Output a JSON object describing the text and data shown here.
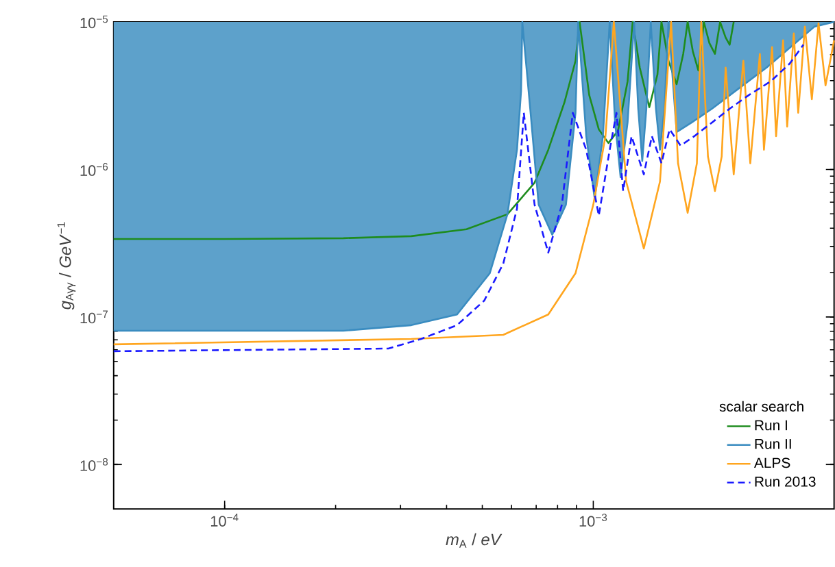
{
  "chart_data": {
    "type": "line",
    "xlabel": "*m*$_{A}$ / *eV*",
    "ylabel": "*g*$_{Aγγ}$ / *GeV*$^{−1}$",
    "legend_title": "scalar search",
    "log": "xy",
    "legend": "bottom right",
    "marker": "none",
    "grid": false,
    "xlim": [
      5e-05,
      0.0045
    ],
    "ylim": [
      5e-09,
      1e-05
    ],
    "xticks": [
      {
        "value": 0.0001,
        "label": "10$^{−4}$"
      },
      {
        "value": 0.001,
        "label": "10$^{−3}$"
      }
    ],
    "yticks": [
      {
        "value": 1e-08,
        "label": "10$^{−8}$"
      },
      {
        "value": 1e-07,
        "label": "10$^{−7}$"
      },
      {
        "value": 1e-06,
        "label": "10$^{−6}$"
      },
      {
        "value": 1e-05,
        "label": "10$^{−5}$"
      }
    ],
    "series": [
      {
        "name": "Run I",
        "color": "#1e8c1e",
        "line_style": "solid",
        "x": [
          5e-05,
          0.0001,
          0.00021,
          0.000321,
          0.000453,
          0.000585,
          0.000693,
          0.000755,
          0.000836,
          0.000895,
          0.000918,
          0.000975,
          0.001035,
          0.001099,
          0.001167,
          0.001239,
          0.001279,
          0.001337,
          0.001419,
          0.001493,
          0.001531,
          0.0016,
          0.001683,
          0.001754,
          0.001803,
          0.001862,
          0.001928,
          0.001995,
          0.002065,
          0.002138,
          0.002208,
          0.002286,
          0.002344,
          0.002404
        ],
        "values": [
          3.38e-07,
          3.38e-07,
          3.42e-07,
          3.53e-07,
          3.93e-07,
          4.97e-07,
          8.13e-07,
          1.36e-06,
          2.87e-06,
          5.45e-06,
          1e-05,
          3.19e-06,
          1.87e-06,
          1.51e-06,
          1.83e-06,
          3.95e-06,
          1e-05,
          4.9e-06,
          2.64e-06,
          4.4e-06,
          1e-05,
          5.45e-06,
          3.78e-06,
          6.07e-06,
          1e-05,
          6.33e-06,
          4.69e-06,
          1e-05,
          7.19e-06,
          6.07e-06,
          1e-05,
          7.83e-06,
          7e-06,
          1e-05
        ]
      },
      {
        "name": "Run II",
        "color": "#3a8cc0",
        "line_style": "solid",
        "x": [
          5e-05,
          0.00021,
          0.000321,
          0.000427,
          0.000524,
          0.000585,
          0.000621,
          0.000637,
          0.000642,
          0.000676,
          0.000711,
          0.000774,
          0.000843,
          0.000895,
          0.00091,
          0.000957,
          0.001009,
          0.001062,
          0.001108,
          0.001146,
          0.001186,
          0.001239,
          0.001291,
          0.001324,
          0.001358,
          0.001393,
          0.001432,
          0.001479,
          0.001517,
          0.00156,
          0.0016,
          0.001683,
          0.001849,
          0.002099,
          0.002489,
          0.002951,
          0.003499,
          0.003981,
          0.0045
        ],
        "values": [
          8.07e-08,
          8.07e-08,
          8.8e-08,
          1.04e-07,
          1.98e-07,
          4.97e-07,
          1.36e-06,
          3.4e-06,
          1e-05,
          2.42e-06,
          5.77e-07,
          3.61e-07,
          5.77e-07,
          2.42e-06,
          1e-05,
          1.68e-06,
          6.3e-07,
          1.68e-06,
          1e-05,
          2.08e-06,
          8.85e-07,
          2.08e-06,
          1e-05,
          2.58e-06,
          1.14e-06,
          2.58e-06,
          1e-05,
          2.58e-06,
          1.36e-06,
          2.58e-06,
          1e-05,
          1.79e-06,
          2.08e-06,
          2.58e-06,
          3.56e-06,
          4.9e-06,
          7.05e-06,
          9.29e-06,
          1e-05
        ],
        "lower": [
          8.07e-08,
          8.07e-08,
          8.8e-08,
          1.04e-07,
          1.98e-07,
          4.97e-07,
          1.36e-06,
          3.4e-06,
          1e-05,
          2.42e-06,
          5.77e-07,
          3.61e-07,
          5.77e-07,
          2.42e-06,
          1e-05,
          1.68e-06,
          6.3e-07,
          1.68e-06,
          1e-05,
          2.08e-06,
          8.85e-07,
          2.08e-06,
          1e-05,
          2.58e-06,
          1.14e-06,
          2.58e-06,
          1e-05,
          2.58e-06,
          1.36e-06,
          2.58e-06,
          1e-05,
          1.79e-06,
          2.08e-06,
          2.58e-06,
          3.56e-06,
          4.9e-06,
          7.05e-06,
          9.29e-06,
          1e-05
        ],
        "upper": [
          1e-05,
          1e-05,
          1e-05,
          1e-05,
          1e-05,
          1e-05,
          1e-05,
          1e-05,
          1e-05,
          1e-05,
          1e-05,
          1e-05,
          1e-05,
          1e-05,
          1e-05,
          1e-05,
          1e-05,
          1e-05,
          1e-05,
          1e-05,
          1e-05,
          1e-05,
          1e-05,
          1e-05,
          1e-05,
          1e-05,
          1e-05,
          1e-05,
          1e-05,
          1e-05,
          1e-05,
          1e-05,
          1e-05,
          1e-05,
          1e-05,
          1e-05,
          1e-05,
          1e-05,
          1e-05
        ]
      },
      {
        "name": "ALPS",
        "color": "#ffa51e",
        "line_style": "solid",
        "x": [
          5e-05,
          0.000321,
          0.00057,
          0.000755,
          0.000895,
          0.001,
          0.001079,
          0.001137,
          0.001228,
          0.001371,
          0.001517,
          0.001626,
          0.001698,
          0.001803,
          0.00191,
          0.001963,
          0.002047,
          0.002138,
          0.00223,
          0.002286,
          0.002404,
          0.002553,
          0.002666,
          0.002831,
          0.002904,
          0.003055,
          0.003133,
          0.003273,
          0.003357,
          0.003499,
          0.003597,
          0.00375,
          0.003917,
          0.004083,
          0.004266,
          0.0045
        ],
        "values": [
          6.52e-08,
          7.1e-08,
          7.57e-08,
          1.04e-07,
          1.98e-07,
          5.77e-07,
          1.68e-06,
          1e-05,
          8.29e-07,
          2.91e-07,
          8.29e-07,
          1e-05,
          1.1e-06,
          5.08e-07,
          1.1e-06,
          1e-05,
          1.22e-06,
          7.14e-07,
          1.22e-06,
          4.9e-06,
          9.25e-07,
          5.45e-06,
          1.1e-06,
          6.07e-06,
          1.36e-06,
          6.75e-06,
          1.68e-06,
          7.51e-06,
          1.95e-06,
          8.36e-06,
          2.42e-06,
          9.29e-06,
          2.99e-06,
          9.79e-06,
          3.71e-06,
          7.5e-06
        ]
      },
      {
        "name": "Run 2013",
        "color": "#1a1aff",
        "line_style": "dashed",
        "x": [
          5e-05,
          0.000278,
          0.000341,
          0.000427,
          0.000506,
          0.00057,
          0.000621,
          0.000648,
          0.000693,
          0.000755,
          0.000822,
          0.00088,
          0.000957,
          0.001035,
          0.001108,
          0.001156,
          0.001205,
          0.00127,
          0.001371,
          0.001442,
          0.001531,
          0.001611,
          0.001725,
          0.001879,
          0.002099,
          0.002344,
          0.002642,
          0.003027,
          0.003412,
          0.003715
        ],
        "values": [
          5.86e-08,
          6.11e-08,
          7.1e-08,
          8.8e-08,
          1.29e-07,
          2.3e-07,
          5.42e-07,
          2.42e-06,
          5.77e-07,
          2.73e-07,
          5.77e-07,
          2.42e-06,
          1.36e-06,
          4.86e-07,
          1.36e-06,
          2.42e-06,
          7.14e-07,
          1.68e-06,
          9.25e-07,
          1.68e-06,
          1.1e-06,
          1.87e-06,
          1.45e-06,
          1.68e-06,
          2.08e-06,
          2.58e-06,
          3.19e-06,
          3.95e-06,
          5.22e-06,
          7e-06
        ]
      }
    ]
  }
}
